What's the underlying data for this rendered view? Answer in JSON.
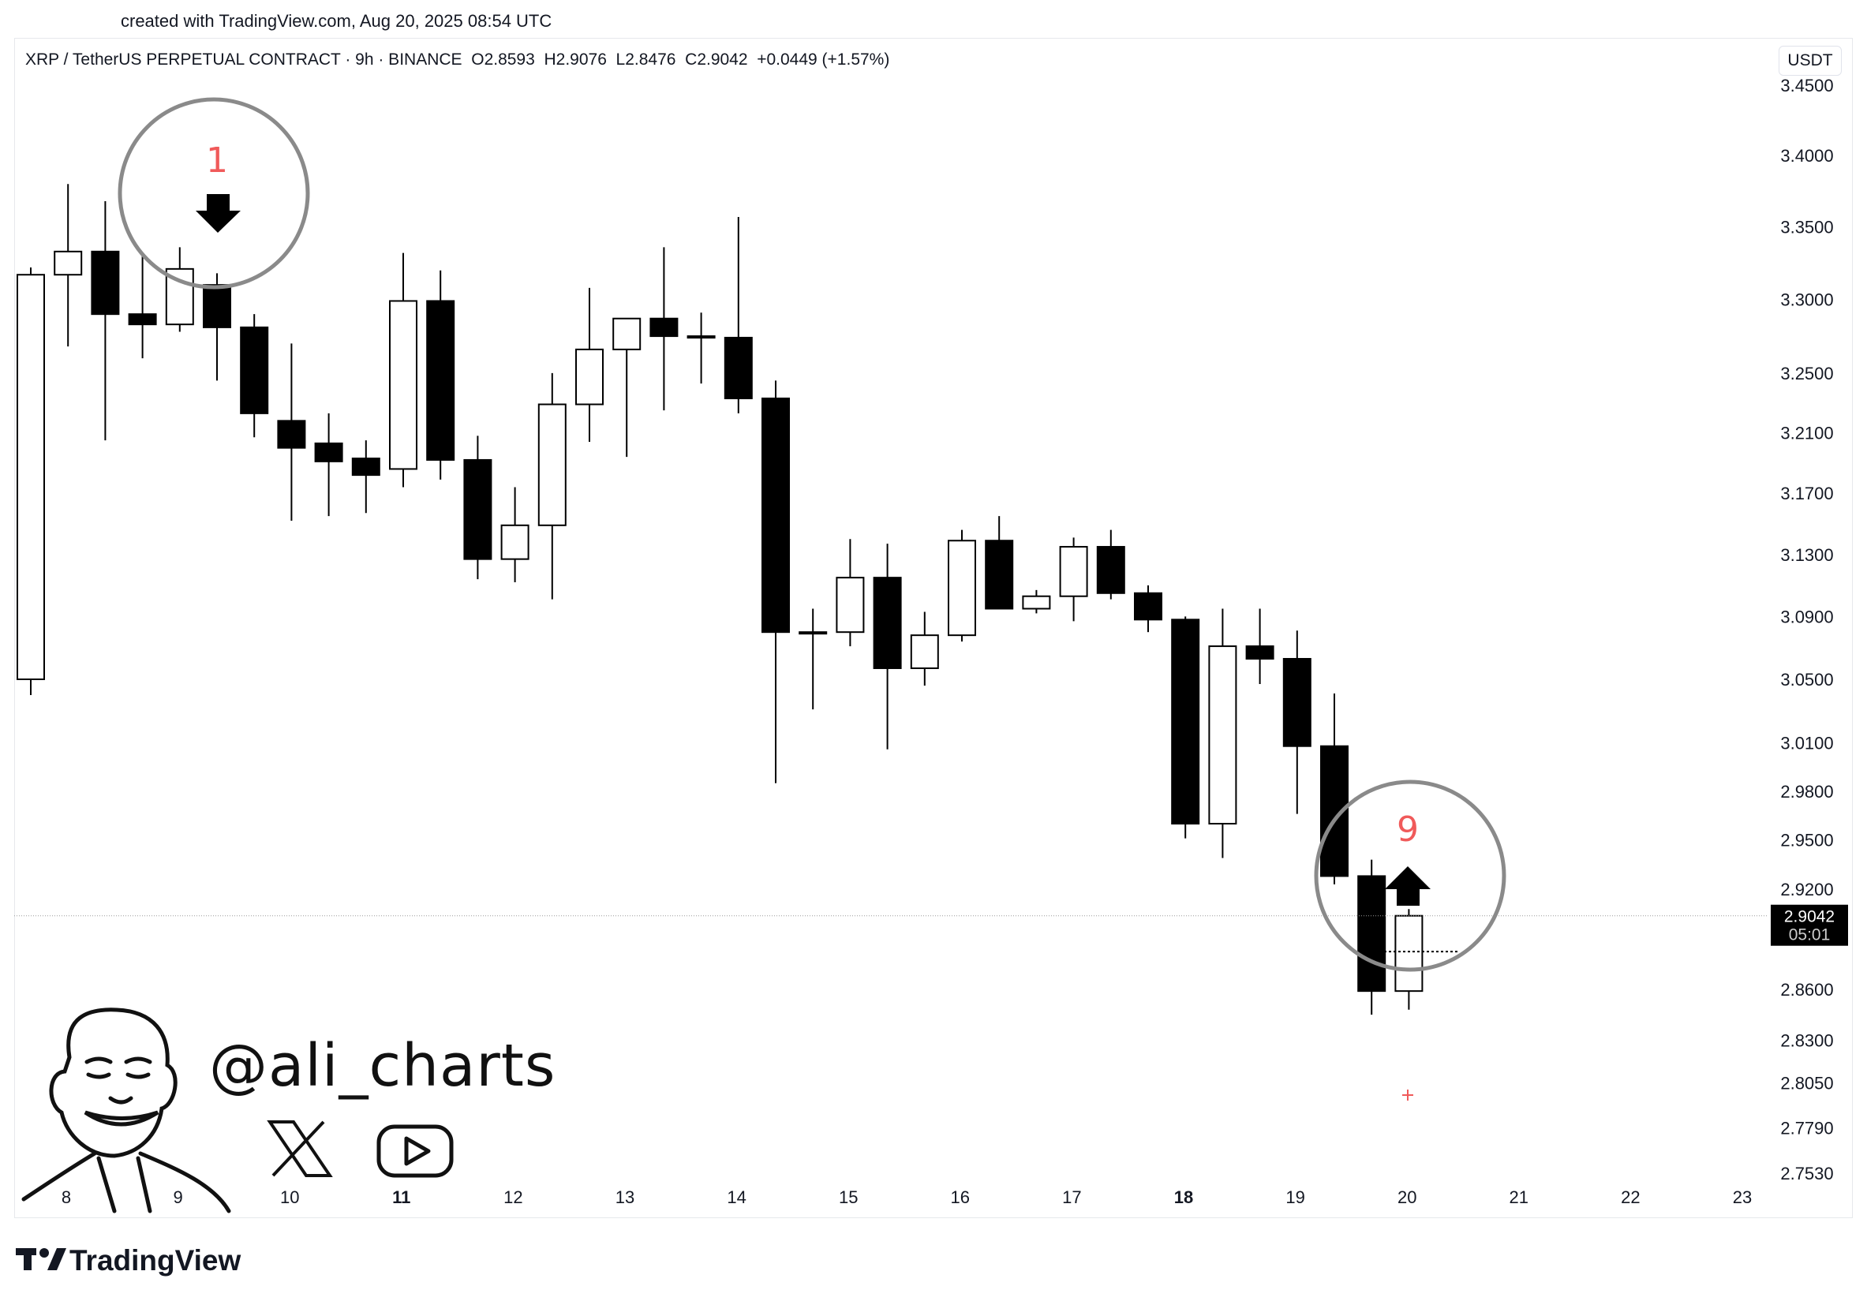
{
  "header": {
    "created_text": "created with TradingView.com, Aug 20, 2025 08:54 UTC"
  },
  "legend": {
    "symbol": "XRP / TetherUS PERPETUAL CONTRACT · 9h · BINANCE",
    "open_label": "O",
    "open": "2.8593",
    "high_label": "H",
    "high": "2.9076",
    "low_label": "L",
    "low": "2.8476",
    "close_label": "C",
    "close": "2.9042",
    "change": "+0.0449 (+1.57%)"
  },
  "currency": "USDT",
  "last_price": {
    "value": "2.9042",
    "countdown": "05:01"
  },
  "annotations": {
    "top_number": "1",
    "bottom_number": "9",
    "top_arrow": "arrow-down-icon",
    "bottom_arrow": "arrow-up-icon"
  },
  "watermark": {
    "handle": "@ali_charts",
    "social_icons": [
      "x-logo-icon",
      "youtube-icon"
    ]
  },
  "footer": {
    "brand": "TradingView"
  },
  "colors": {
    "up_body": "#ffffff",
    "down_body": "#000000",
    "wick": "#000000",
    "annotation_number": "#f05a5a",
    "circle": "#8a8a8a",
    "price_tag_bg": "#000000"
  },
  "chart_data": {
    "type": "candlestick",
    "symbol": "XRP / TetherUS PERPETUAL CONTRACT",
    "interval": "9h",
    "exchange": "BINANCE",
    "y_scale": "log",
    "ylim": [
      2.753,
      3.45
    ],
    "y_ticks": [
      "3.4500",
      "3.4000",
      "3.3500",
      "3.3000",
      "3.2500",
      "3.2100",
      "3.1700",
      "3.1300",
      "3.0900",
      "3.0500",
      "3.0100",
      "2.9800",
      "2.9500",
      "2.9200",
      "2.8600",
      "2.8300",
      "2.8050",
      "2.7790",
      "2.7530"
    ],
    "x_ticks": [
      {
        "label": "8",
        "bold": false,
        "day": 8
      },
      {
        "label": "9",
        "bold": false,
        "day": 9
      },
      {
        "label": "10",
        "bold": false,
        "day": 10
      },
      {
        "label": "11",
        "bold": true,
        "day": 11
      },
      {
        "label": "12",
        "bold": false,
        "day": 12
      },
      {
        "label": "13",
        "bold": false,
        "day": 13
      },
      {
        "label": "14",
        "bold": false,
        "day": 14
      },
      {
        "label": "15",
        "bold": false,
        "day": 15
      },
      {
        "label": "16",
        "bold": false,
        "day": 16
      },
      {
        "label": "17",
        "bold": false,
        "day": 17
      },
      {
        "label": "18",
        "bold": true,
        "day": 18
      },
      {
        "label": "19",
        "bold": false,
        "day": 19
      },
      {
        "label": "20",
        "bold": false,
        "day": 20
      },
      {
        "label": "21",
        "bold": false,
        "day": 21
      },
      {
        "label": "22",
        "bold": false,
        "day": 22
      },
      {
        "label": "23",
        "bold": false,
        "day": 23
      }
    ],
    "candles": [
      {
        "o": 3.05,
        "h": 3.322,
        "l": 3.04,
        "c": 3.317
      },
      {
        "o": 3.317,
        "h": 3.38,
        "l": 3.268,
        "c": 3.333
      },
      {
        "o": 3.333,
        "h": 3.368,
        "l": 3.205,
        "c": 3.29
      },
      {
        "o": 3.29,
        "h": 3.33,
        "l": 3.26,
        "c": 3.283
      },
      {
        "o": 3.283,
        "h": 3.336,
        "l": 3.278,
        "c": 3.321
      },
      {
        "o": 3.31,
        "h": 3.318,
        "l": 3.245,
        "c": 3.281
      },
      {
        "o": 3.281,
        "h": 3.29,
        "l": 3.207,
        "c": 3.223
      },
      {
        "o": 3.218,
        "h": 3.27,
        "l": 3.152,
        "c": 3.2
      },
      {
        "o": 3.203,
        "h": 3.223,
        "l": 3.155,
        "c": 3.191
      },
      {
        "o": 3.193,
        "h": 3.205,
        "l": 3.157,
        "c": 3.182
      },
      {
        "o": 3.186,
        "h": 3.332,
        "l": 3.174,
        "c": 3.299
      },
      {
        "o": 3.299,
        "h": 3.32,
        "l": 3.179,
        "c": 3.192
      },
      {
        "o": 3.192,
        "h": 3.208,
        "l": 3.114,
        "c": 3.127
      },
      {
        "o": 3.127,
        "h": 3.174,
        "l": 3.112,
        "c": 3.149
      },
      {
        "o": 3.149,
        "h": 3.25,
        "l": 3.101,
        "c": 3.229
      },
      {
        "o": 3.229,
        "h": 3.308,
        "l": 3.204,
        "c": 3.266
      },
      {
        "o": 3.266,
        "h": 3.286,
        "l": 3.194,
        "c": 3.287
      },
      {
        "o": 3.287,
        "h": 3.336,
        "l": 3.225,
        "c": 3.275
      },
      {
        "o": 3.275,
        "h": 3.291,
        "l": 3.243,
        "c": 3.275
      },
      {
        "o": 3.274,
        "h": 3.357,
        "l": 3.223,
        "c": 3.233
      },
      {
        "o": 3.233,
        "h": 3.245,
        "l": 2.985,
        "c": 3.08
      },
      {
        "o": 3.08,
        "h": 3.095,
        "l": 3.031,
        "c": 3.08
      },
      {
        "o": 3.08,
        "h": 3.14,
        "l": 3.071,
        "c": 3.115
      },
      {
        "o": 3.115,
        "h": 3.137,
        "l": 3.006,
        "c": 3.057
      },
      {
        "o": 3.057,
        "h": 3.093,
        "l": 3.046,
        "c": 3.078
      },
      {
        "o": 3.078,
        "h": 3.146,
        "l": 3.074,
        "c": 3.139
      },
      {
        "o": 3.139,
        "h": 3.155,
        "l": 3.095,
        "c": 3.095
      },
      {
        "o": 3.095,
        "h": 3.107,
        "l": 3.092,
        "c": 3.103
      },
      {
        "o": 3.103,
        "h": 3.141,
        "l": 3.087,
        "c": 3.135
      },
      {
        "o": 3.135,
        "h": 3.146,
        "l": 3.101,
        "c": 3.105
      },
      {
        "o": 3.105,
        "h": 3.11,
        "l": 3.08,
        "c": 3.088
      },
      {
        "o": 3.088,
        "h": 3.09,
        "l": 2.951,
        "c": 2.96
      },
      {
        "o": 2.96,
        "h": 3.095,
        "l": 2.939,
        "c": 3.071
      },
      {
        "o": 3.071,
        "h": 3.095,
        "l": 3.047,
        "c": 3.063
      },
      {
        "o": 3.063,
        "h": 3.081,
        "l": 2.966,
        "c": 3.008
      },
      {
        "o": 3.008,
        "h": 3.041,
        "l": 2.923,
        "c": 2.928
      },
      {
        "o": 2.928,
        "h": 2.938,
        "l": 2.845,
        "c": 2.859
      },
      {
        "o": 2.859,
        "h": 2.908,
        "l": 2.848,
        "c": 2.904
      }
    ]
  }
}
